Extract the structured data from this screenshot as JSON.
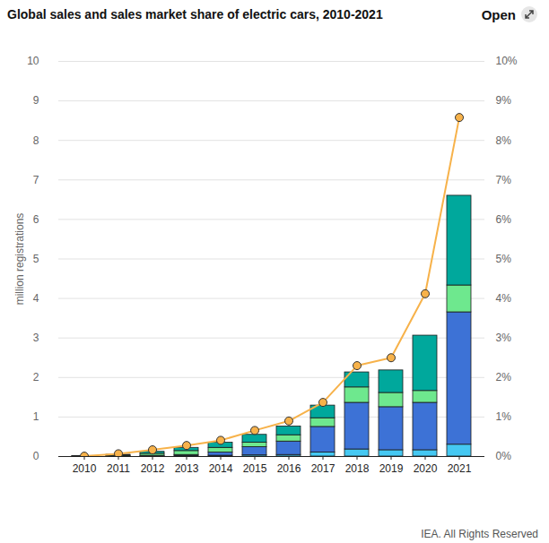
{
  "chart_data": {
    "type": "bar",
    "title": "Global sales and sales market share of electric cars, 2010-2021",
    "button": "Open",
    "caption": "IEA. All Rights Reserved",
    "ylabel": "million registrations",
    "categories": [
      "2010",
      "2011",
      "2012",
      "2013",
      "2014",
      "2015",
      "2016",
      "2017",
      "2018",
      "2019",
      "2020",
      "2021"
    ],
    "stacked": true,
    "grid": true,
    "ylim": [
      0,
      10
    ],
    "yticks": [
      0,
      1,
      2,
      3,
      4,
      5,
      6,
      7,
      8,
      9,
      10
    ],
    "y2lim": [
      0,
      10
    ],
    "y2ticks": [
      {
        "value": 0,
        "label": "0%"
      },
      {
        "value": 1,
        "label": "1%"
      },
      {
        "value": 2,
        "label": "2%"
      },
      {
        "value": 3,
        "label": "3%"
      },
      {
        "value": 4,
        "label": "4%"
      },
      {
        "value": 5,
        "label": "5%"
      },
      {
        "value": 6,
        "label": "6%"
      },
      {
        "value": 7,
        "label": "7%"
      },
      {
        "value": 8,
        "label": "8%"
      },
      {
        "value": 9,
        "label": "9%"
      },
      {
        "value": 10,
        "label": "10%"
      }
    ],
    "series": [
      {
        "type": "bar",
        "color": "#45c8f2",
        "values": [
          0.002,
          0.005,
          0.01,
          0.02,
          0.02,
          0.03,
          0.04,
          0.1,
          0.18,
          0.16,
          0.16,
          0.3
        ]
      },
      {
        "type": "bar",
        "color": "#3d72d6",
        "values": [
          0.001,
          0.005,
          0.01,
          0.02,
          0.08,
          0.21,
          0.34,
          0.65,
          1.18,
          1.09,
          1.2,
          3.35
        ]
      },
      {
        "type": "bar",
        "color": "#6ee88e",
        "values": [
          0.002,
          0.02,
          0.05,
          0.1,
          0.12,
          0.11,
          0.16,
          0.22,
          0.39,
          0.36,
          0.3,
          0.68
        ]
      },
      {
        "type": "bar",
        "color": "#00a89c",
        "values": [
          0.001,
          0.015,
          0.05,
          0.08,
          0.13,
          0.2,
          0.22,
          0.32,
          0.38,
          0.57,
          1.4,
          2.27
        ]
      },
      {
        "type": "line",
        "axis": "y2",
        "color": "#f7b24a",
        "marker": "circle",
        "values": [
          0.01,
          0.07,
          0.17,
          0.28,
          0.41,
          0.66,
          0.9,
          1.37,
          2.3,
          2.5,
          4.12,
          8.58
        ]
      }
    ]
  }
}
